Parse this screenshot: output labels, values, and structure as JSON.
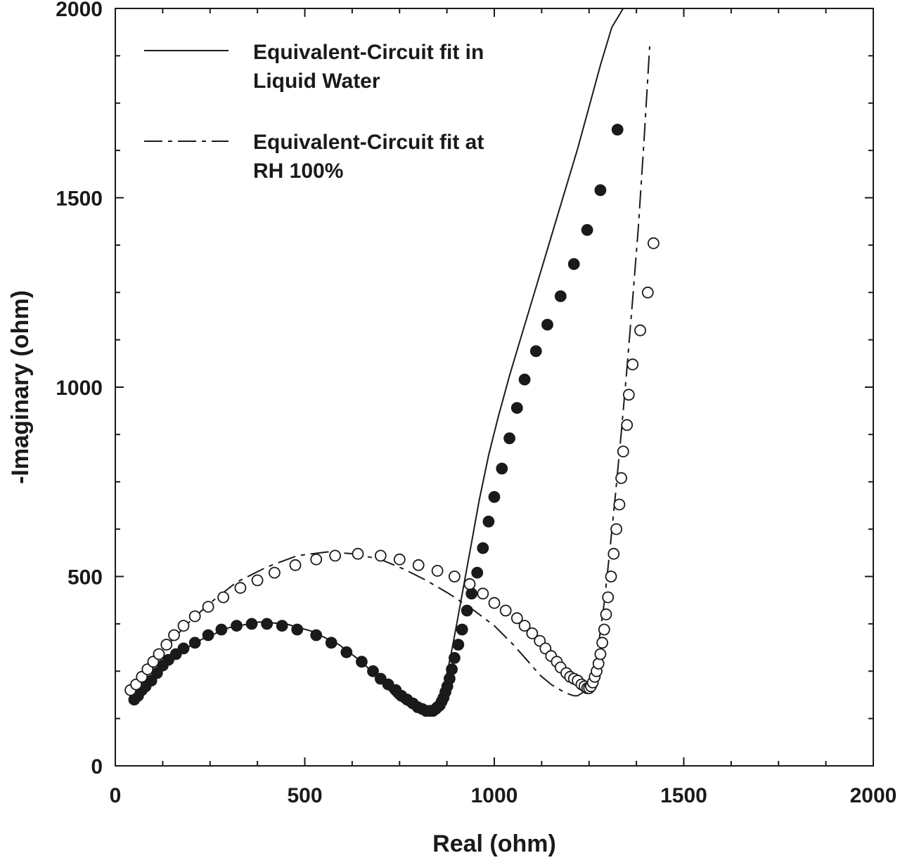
{
  "chart_data": {
    "type": "scatter",
    "title": "",
    "xlabel": "Real (ohm)",
    "ylabel": "-Imaginary (ohm)",
    "xlim": [
      0,
      2000
    ],
    "ylim": [
      0,
      2000
    ],
    "x_ticks": [
      "0",
      "500",
      "1000",
      "1500",
      "2000"
    ],
    "y_ticks": [
      "0",
      "500",
      "1000",
      "1500",
      "2000"
    ],
    "grid": false,
    "legend_position": "top-left",
    "legend": [
      {
        "label_line1": "Equivalent-Circuit fit in",
        "label_line2": "Liquid Water",
        "style": "solid"
      },
      {
        "label_line1": "Equivalent-Circuit fit at",
        "label_line2": "RH 100%",
        "style": "dashed"
      }
    ],
    "series": [
      {
        "kind": "points",
        "marker": "filled-circle",
        "x": [
          50,
          60,
          70,
          80,
          95,
          110,
          125,
          140,
          160,
          180,
          210,
          245,
          280,
          320,
          360,
          400,
          440,
          480,
          530,
          570,
          610,
          650,
          680,
          700,
          720,
          740,
          755,
          770,
          785,
          798,
          810,
          820,
          830,
          838,
          845,
          850,
          856,
          861,
          866,
          871,
          876,
          882,
          888,
          895,
          905,
          915,
          928,
          940,
          955,
          970,
          985,
          1000,
          1020,
          1040,
          1060,
          1080,
          1110,
          1140,
          1175,
          1210,
          1245,
          1280,
          1325
        ],
        "y": [
          175,
          185,
          200,
          210,
          225,
          245,
          265,
          280,
          295,
          310,
          325,
          345,
          360,
          370,
          375,
          375,
          370,
          360,
          345,
          325,
          300,
          275,
          250,
          230,
          215,
          200,
          185,
          175,
          165,
          155,
          150,
          145,
          145,
          145,
          150,
          155,
          160,
          170,
          180,
          195,
          210,
          230,
          255,
          285,
          320,
          360,
          410,
          455,
          510,
          575,
          645,
          710,
          785,
          865,
          945,
          1020,
          1095,
          1165,
          1240,
          1325,
          1415,
          1520,
          1680
        ]
      },
      {
        "kind": "points",
        "marker": "open-circle",
        "x": [
          40,
          55,
          70,
          85,
          100,
          115,
          135,
          155,
          180,
          210,
          245,
          285,
          330,
          375,
          420,
          475,
          530,
          580,
          640,
          700,
          750,
          800,
          850,
          895,
          935,
          970,
          1000,
          1030,
          1060,
          1080,
          1100,
          1120,
          1135,
          1150,
          1165,
          1175,
          1190,
          1200,
          1210,
          1220,
          1230,
          1238,
          1245,
          1250,
          1255,
          1260,
          1265,
          1270,
          1275,
          1280,
          1285,
          1290,
          1295,
          1300,
          1308,
          1315,
          1322,
          1330,
          1335,
          1340,
          1350,
          1355,
          1365,
          1385,
          1405,
          1420
        ],
        "y": [
          200,
          215,
          235,
          255,
          275,
          295,
          320,
          345,
          370,
          395,
          420,
          445,
          470,
          490,
          510,
          530,
          545,
          555,
          560,
          555,
          545,
          530,
          515,
          500,
          480,
          455,
          430,
          410,
          390,
          370,
          350,
          330,
          310,
          290,
          275,
          260,
          245,
          235,
          230,
          225,
          215,
          210,
          205,
          205,
          210,
          220,
          235,
          250,
          270,
          295,
          325,
          360,
          400,
          445,
          500,
          560,
          625,
          690,
          760,
          830,
          900,
          980,
          1060,
          1150,
          1250,
          1380
        ]
      },
      {
        "kind": "line",
        "style": "solid",
        "x": [
          50,
          80,
          120,
          170,
          230,
          300,
          380,
          450,
          520,
          590,
          650,
          700,
          740,
          770,
          795,
          815,
          830,
          842,
          852,
          862,
          872,
          885,
          900,
          920,
          940,
          960,
          985,
          1010,
          1040,
          1070,
          1100,
          1130,
          1160,
          1190,
          1220,
          1250,
          1280,
          1310,
          1340
        ],
        "y": [
          170,
          215,
          260,
          300,
          335,
          365,
          380,
          375,
          355,
          320,
          275,
          225,
          180,
          160,
          150,
          145,
          145,
          150,
          165,
          190,
          230,
          290,
          370,
          480,
          590,
          700,
          820,
          920,
          1030,
          1130,
          1230,
          1330,
          1430,
          1530,
          1630,
          1740,
          1850,
          1950,
          2000
        ]
      },
      {
        "kind": "line",
        "style": "dashed",
        "x": [
          40,
          80,
          130,
          190,
          250,
          320,
          400,
          480,
          560,
          630,
          700,
          760,
          820,
          880,
          940,
          1000,
          1050,
          1090,
          1120,
          1150,
          1175,
          1195,
          1210,
          1220,
          1235,
          1250,
          1262,
          1275,
          1290,
          1305,
          1320,
          1335,
          1350,
          1365,
          1380,
          1395,
          1410
        ],
        "y": [
          185,
          245,
          310,
          375,
          430,
          485,
          525,
          555,
          565,
          560,
          545,
          520,
          490,
          455,
          415,
          370,
          320,
          275,
          240,
          215,
          200,
          190,
          185,
          185,
          195,
          215,
          250,
          320,
          430,
          570,
          720,
          880,
          1050,
          1230,
          1420,
          1650,
          1900
        ]
      }
    ]
  }
}
